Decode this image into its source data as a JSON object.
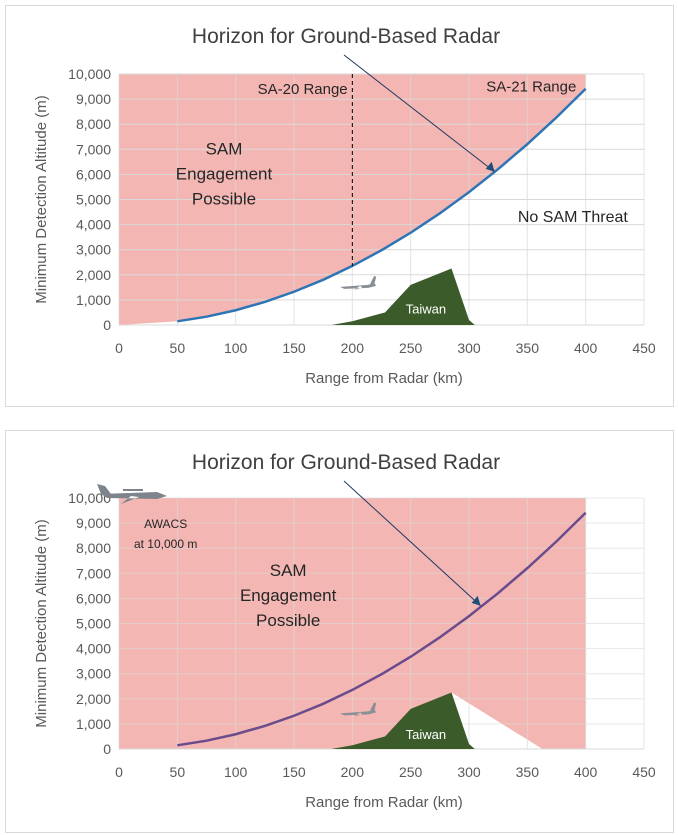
{
  "chart_data": [
    {
      "type": "area",
      "title": "Horizon for Ground-Based Radar",
      "xlabel": "Range from Radar (km)",
      "ylabel": "Minimum Detection Altitude (m)",
      "xlim": [
        0,
        450
      ],
      "ylim": [
        0,
        10000
      ],
      "xticks": [
        "0",
        "50",
        "100",
        "150",
        "200",
        "250",
        "300",
        "350",
        "400",
        "450"
      ],
      "yticks": [
        "0",
        "1,000",
        "2,000",
        "3,000",
        "4,000",
        "5,000",
        "6,000",
        "7,000",
        "8,000",
        "9,000",
        "10,000"
      ],
      "grid": true,
      "series": [
        {
          "name": "Radar horizon",
          "x": [
            50,
            75,
            100,
            125,
            150,
            175,
            200,
            225,
            250,
            275,
            300,
            325,
            350,
            375,
            400
          ],
          "y": [
            147,
            331,
            588,
            919,
            1324,
            1801,
            2353,
            2978,
            3676,
            4449,
            5294,
            6213,
            7206,
            8272,
            9412
          ],
          "color": "#2e75b6"
        },
        {
          "name": "Taiwan",
          "x": [
            182,
            200,
            228,
            250,
            285,
            300,
            305
          ],
          "y": [
            0,
            150,
            500,
            1600,
            2250,
            200,
            0
          ],
          "color": "#3b5b2a"
        }
      ],
      "shaded_region": {
        "label": "SAM Engagement Possible",
        "color": "#f4b6b2"
      },
      "annotations": {
        "sam_zone": [
          "SAM",
          "Engagement",
          "Possible"
        ],
        "no_threat": "No SAM Threat",
        "sa20": "SA-20 Range",
        "sa20_x": 200,
        "sa21": "SA-21 Range",
        "sa21_x": 400,
        "taiwan": "Taiwan"
      }
    },
    {
      "type": "area",
      "title": "Horizon for Ground-Based Radar",
      "xlabel": "Range from Radar (km)",
      "ylabel": "Minimum Detection Altitude (m)",
      "xlim": [
        0,
        450
      ],
      "ylim": [
        0,
        10000
      ],
      "xticks": [
        "0",
        "50",
        "100",
        "150",
        "200",
        "250",
        "300",
        "350",
        "400",
        "450"
      ],
      "yticks": [
        "0",
        "1,000",
        "2,000",
        "3,000",
        "4,000",
        "5,000",
        "6,000",
        "7,000",
        "8,000",
        "9,000",
        "10,000"
      ],
      "grid": true,
      "series": [
        {
          "name": "Radar horizon",
          "x": [
            50,
            75,
            100,
            125,
            150,
            175,
            200,
            225,
            250,
            275,
            300,
            325,
            350,
            375,
            400
          ],
          "y": [
            147,
            331,
            588,
            919,
            1324,
            1801,
            2353,
            2978,
            3676,
            4449,
            5294,
            6213,
            7206,
            8272,
            9412
          ],
          "color": "#6a4c8c"
        },
        {
          "name": "Taiwan",
          "x": [
            182,
            200,
            228,
            250,
            285,
            300,
            305
          ],
          "y": [
            0,
            150,
            500,
            1600,
            2250,
            200,
            0
          ],
          "color": "#3b5b2a"
        }
      ],
      "shadow": {
        "x": [
          285,
          363
        ],
        "y": [
          2250,
          0
        ]
      },
      "shaded_region": {
        "label": "SAM Engagement Possible",
        "color": "#f4b6b2"
      },
      "annotations": {
        "sam_zone": [
          "SAM",
          "Engagement",
          "Possible"
        ],
        "awacs": [
          "AWACS",
          "at 10,000  m"
        ],
        "taiwan": "Taiwan"
      }
    }
  ]
}
